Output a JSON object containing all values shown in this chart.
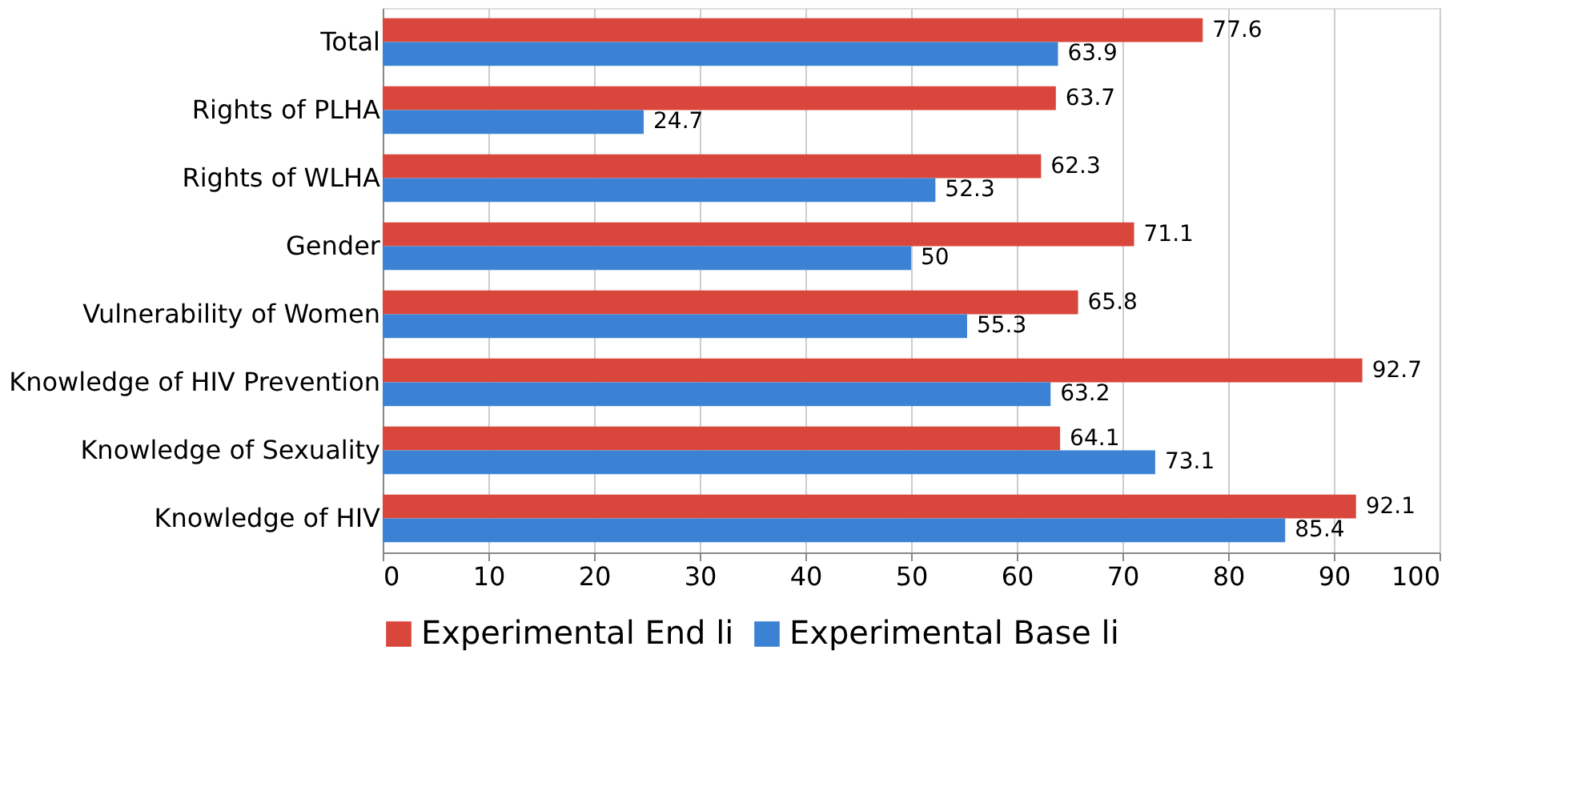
{
  "chart_data": {
    "type": "bar",
    "orientation": "horizontal",
    "categories": [
      "Total",
      "Rights of PLHA",
      "Rights of WLHA",
      "Gender",
      "Vulnerability of Women",
      "Knowledge of HIV Prevention",
      "Knowledge of Sexuality",
      "Knowledge of HIV"
    ],
    "series": [
      {
        "name": "Experimental End li",
        "color": "#d9463c",
        "values": [
          77.6,
          63.7,
          62.3,
          71.1,
          65.8,
          92.7,
          64.1,
          92.1
        ]
      },
      {
        "name": "Experimental Base li",
        "color": "#3b82d4",
        "values": [
          63.9,
          24.7,
          52.3,
          50,
          55.3,
          63.2,
          73.1,
          85.4
        ]
      }
    ],
    "xlim": [
      0,
      100
    ],
    "xticks": [
      0,
      10,
      20,
      30,
      40,
      50,
      60,
      70,
      80,
      90,
      100
    ],
    "data_labels": true,
    "grid": "x",
    "legend": "bottom"
  }
}
